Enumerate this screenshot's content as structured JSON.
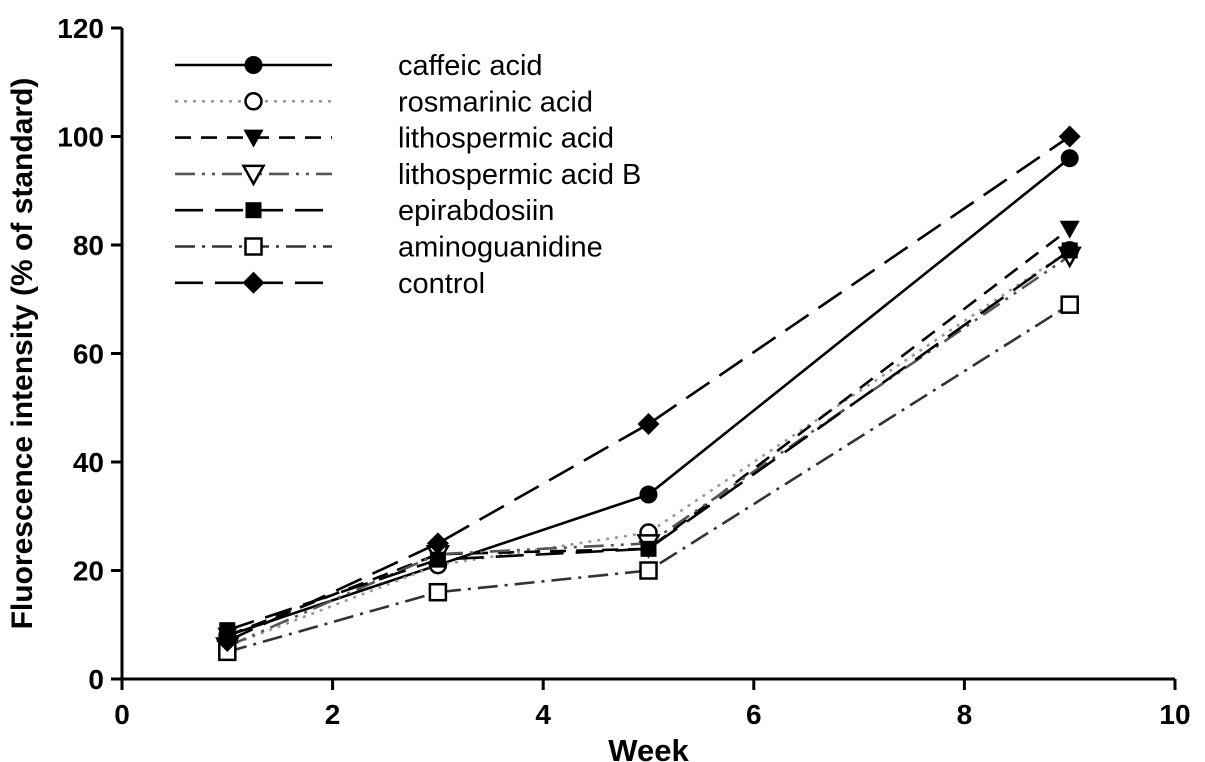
{
  "chart_data": {
    "type": "line",
    "title": "",
    "xlabel": "Week",
    "ylabel": "Fluorescence intensity (% of standard)",
    "xlim": [
      0,
      10
    ],
    "ylim": [
      0,
      120
    ],
    "xticks": [
      0,
      2,
      4,
      6,
      8,
      10
    ],
    "yticks": [
      0,
      20,
      40,
      60,
      80,
      100,
      120
    ],
    "x": [
      1,
      3,
      5,
      9
    ],
    "grid": false,
    "legend_position": "upper-left",
    "axis_color": "#000000",
    "series": [
      {
        "name": "caffeic acid",
        "values": [
          8,
          21,
          34,
          96
        ],
        "marker": "circle-filled",
        "line": "solid",
        "color": "#000000"
      },
      {
        "name": "rosmarinic acid",
        "values": [
          6,
          21,
          27,
          79
        ],
        "marker": "circle-open",
        "line": "dotted",
        "color": "#999999"
      },
      {
        "name": "lithospermic acid",
        "values": [
          8,
          23,
          24,
          83
        ],
        "marker": "triangle-down-filled",
        "line": "dashed",
        "color": "#000000"
      },
      {
        "name": "lithospermic acid B",
        "values": [
          6,
          23,
          25,
          78
        ],
        "marker": "triangle-down-open",
        "line": "dash-dot-dot",
        "color": "#555555"
      },
      {
        "name": "epirabdosiin",
        "values": [
          9,
          22,
          24,
          79
        ],
        "marker": "square-filled",
        "line": "long-dash",
        "color": "#000000"
      },
      {
        "name": "aminoguanidine",
        "values": [
          5,
          16,
          20,
          69
        ],
        "marker": "square-open",
        "line": "dash-dot",
        "color": "#333333"
      },
      {
        "name": "control",
        "values": [
          7,
          25,
          47,
          100
        ],
        "marker": "diamond-filled",
        "line": "long-dash",
        "color": "#000000"
      }
    ]
  }
}
